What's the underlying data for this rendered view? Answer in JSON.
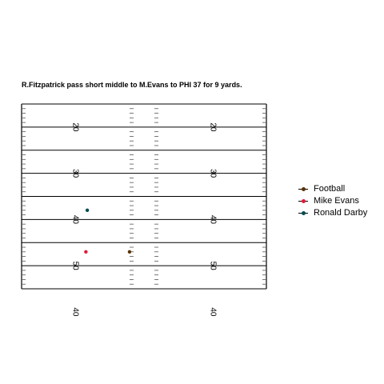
{
  "chart_data": {
    "type": "scatter",
    "title": "R.Fitzpatrick pass short middle to M.Evans to PHI 37 for 9 yards.",
    "xlabel": "",
    "ylabel": "",
    "yard_line_labels": [
      {
        "yard": 20,
        "label": "20"
      },
      {
        "yard": 30,
        "label": "30"
      },
      {
        "yard": 40,
        "label": "40"
      },
      {
        "yard": 50,
        "label": "50"
      },
      {
        "yard": 60,
        "label": "40"
      }
    ],
    "ylim": [
      15,
      55
    ],
    "xlim": [
      0,
      53.3
    ],
    "series": [
      {
        "name": "Football",
        "color": "#5a3000",
        "points": [
          {
            "x": 23.5,
            "y": 47
          }
        ]
      },
      {
        "name": "Mike Evans",
        "color": "#e31837",
        "points": [
          {
            "x": 14,
            "y": 47
          }
        ]
      },
      {
        "name": "Ronald Darby",
        "color": "#004c54",
        "points": [
          {
            "x": 14.3,
            "y": 38
          }
        ]
      }
    ],
    "grid": true,
    "legend_position": "right"
  }
}
